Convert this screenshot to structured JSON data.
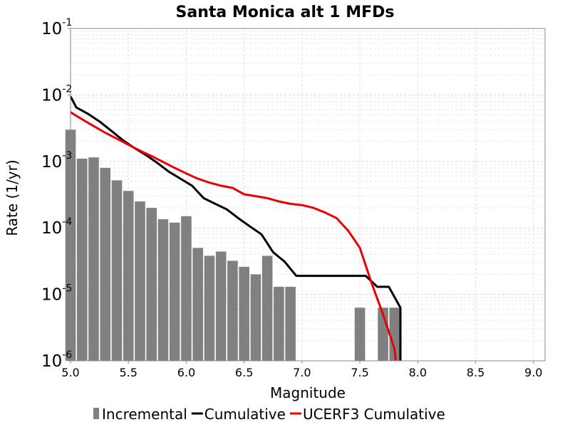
{
  "chart_data": {
    "type": "bar",
    "title": "Santa Monica alt 1 MFDs",
    "xlabel": "Magnitude",
    "ylabel": "Rate (1/yr)",
    "xlim": [
      5.0,
      9.1
    ],
    "ylim": [
      1e-06,
      0.1
    ],
    "yscale": "log",
    "grid": true,
    "legend_position": "bottom",
    "x_ticks": [
      "5.0",
      "5.5",
      "6.0",
      "6.5",
      "7.0",
      "7.5",
      "8.0",
      "8.5",
      "9.0"
    ],
    "y_ticks": [
      {
        "base": "10",
        "exp": "-6",
        "value": 1e-06
      },
      {
        "base": "10",
        "exp": "-5",
        "value": 1e-05
      },
      {
        "base": "10",
        "exp": "-4",
        "value": 0.0001
      },
      {
        "base": "10",
        "exp": "-3",
        "value": 0.001
      },
      {
        "base": "10",
        "exp": "-2",
        "value": 0.01
      },
      {
        "base": "10",
        "exp": "-1",
        "value": 0.1
      }
    ],
    "series": [
      {
        "name": "Incremental",
        "kind": "bar",
        "color": "#808080",
        "x": [
          5.0,
          5.1,
          5.2,
          5.3,
          5.4,
          5.5,
          5.6,
          5.7,
          5.8,
          5.9,
          6.0,
          6.1,
          6.2,
          6.3,
          6.4,
          6.5,
          6.6,
          6.7,
          6.8,
          6.9,
          7.5,
          7.7,
          7.8
        ],
        "values": [
          0.003,
          0.0011,
          0.00115,
          0.0008,
          0.00052,
          0.00036,
          0.00025,
          0.0002,
          0.000135,
          0.00012,
          0.00015,
          5e-05,
          3.8e-05,
          4.4e-05,
          3.2e-05,
          2.6e-05,
          2e-05,
          3.8e-05,
          1.3e-05,
          1.3e-05,
          6.3e-06,
          6.3e-06,
          6.3e-06
        ]
      },
      {
        "name": "Cumulative",
        "kind": "line",
        "color": "#000000",
        "x": [
          4.95,
          5.05,
          5.15,
          5.25,
          5.35,
          5.45,
          5.55,
          5.65,
          5.75,
          5.85,
          5.95,
          6.05,
          6.15,
          6.25,
          6.35,
          6.45,
          6.55,
          6.65,
          6.75,
          6.85,
          6.95,
          7.05,
          7.45,
          7.55,
          7.65,
          7.75,
          7.85
        ],
        "values": [
          0.0095,
          0.0065,
          0.0052,
          0.004,
          0.0029,
          0.0021,
          0.0016,
          0.00125,
          0.00095,
          0.0007,
          0.00055,
          0.00043,
          0.00028,
          0.00023,
          0.00019,
          0.00014,
          0.000105,
          8e-05,
          4.3e-05,
          3.1e-05,
          1.9e-05,
          1.9e-05,
          1.9e-05,
          1.9e-05,
          1.3e-05,
          1.3e-05,
          6.3e-06
        ]
      },
      {
        "name": "UCERF3 Cumulative",
        "kind": "line",
        "color": "#ee0000",
        "x": [
          5.0,
          5.1,
          5.2,
          5.3,
          5.4,
          5.5,
          5.6,
          5.7,
          5.8,
          5.9,
          6.0,
          6.1,
          6.2,
          6.3,
          6.4,
          6.5,
          6.6,
          6.7,
          6.8,
          6.9,
          7.0,
          7.1,
          7.2,
          7.3,
          7.4,
          7.5,
          7.6,
          7.7,
          7.8,
          7.81
        ],
        "values": [
          0.0055,
          0.0043,
          0.0034,
          0.0027,
          0.0022,
          0.00178,
          0.00145,
          0.0012,
          0.00098,
          0.0008,
          0.00066,
          0.00055,
          0.00048,
          0.00043,
          0.0004,
          0.00032,
          0.0003,
          0.00028,
          0.00025,
          0.00023,
          0.00022,
          0.0002,
          0.00017,
          0.00014,
          9e-05,
          5e-05,
          1.5e-05,
          5e-06,
          1.5e-06,
          1e-06
        ]
      }
    ]
  }
}
